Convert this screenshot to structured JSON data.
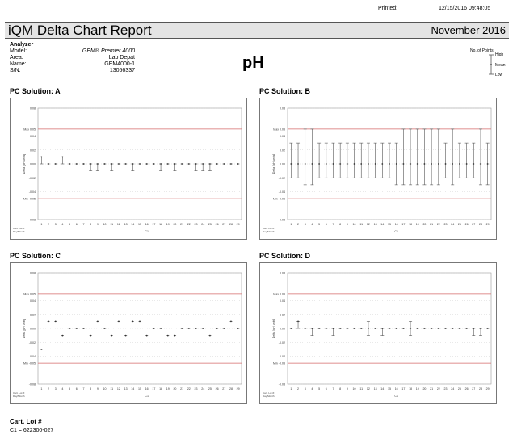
{
  "header": {
    "printed_label": "Printed:",
    "printed_value": "12/15/2016  09:48:05",
    "report_title": "iQM Delta Chart Report",
    "month": "November 2016"
  },
  "analyzer": {
    "heading": "Analyzer",
    "rows": [
      {
        "label": "Model:",
        "value": "GEM® Premier 4000"
      },
      {
        "label": "Area:",
        "value": "Lab Depat"
      },
      {
        "label": "Name:",
        "value": "GEM4000-1"
      },
      {
        "label": "S/N:",
        "value": "13056337"
      }
    ]
  },
  "parameter": "pH",
  "legend": {
    "title": "No. of Points",
    "high": "High",
    "mean": "Mean",
    "low": "Low"
  },
  "axis": {
    "ylabels": [
      "0.08",
      "Max 0.05",
      "0.04",
      "0.02",
      "0.00",
      "-0.02",
      "-0.04",
      "Min -0.05",
      "-0.08"
    ],
    "ytitle": "Delta [pH units]",
    "days": [
      "1",
      "2",
      "3",
      "4",
      "5",
      "6",
      "7",
      "8",
      "9",
      "10",
      "11",
      "12",
      "13",
      "14",
      "15",
      "16",
      "17",
      "18",
      "19",
      "20",
      "21",
      "22",
      "23",
      "24",
      "25",
      "26",
      "27",
      "28",
      "29"
    ],
    "cart_label": "Cart. Lot #:",
    "day_label": "Day/Month",
    "lot_mark": "C1"
  },
  "colors": {
    "limit": "#d46a6a",
    "grid": "#c8c8c8",
    "data": "#555555"
  },
  "chart_data": [
    {
      "type": "scatter",
      "title": "PC Solution: A",
      "ylim": [
        -0.08,
        0.08
      ],
      "limits": [
        0.05,
        -0.05
      ],
      "x": [
        1,
        2,
        3,
        4,
        5,
        6,
        7,
        8,
        9,
        10,
        11,
        12,
        13,
        14,
        15,
        16,
        17,
        18,
        19,
        20,
        21,
        22,
        23,
        24,
        25,
        26,
        27,
        28,
        29
      ],
      "mean": [
        0.01,
        0,
        0,
        0.01,
        0,
        0,
        0,
        0,
        0,
        0,
        0,
        0,
        0,
        0,
        0,
        0,
        0,
        0,
        0,
        0,
        0,
        0,
        0,
        0,
        0,
        0,
        0,
        0,
        0
      ],
      "high": [
        0.01,
        0,
        0,
        0.01,
        0,
        0,
        0,
        0,
        0,
        0,
        0,
        0,
        0,
        0,
        0,
        0,
        0,
        0,
        0,
        0,
        0,
        0,
        0,
        0,
        0,
        0,
        0,
        0,
        0
      ],
      "low": [
        0,
        0,
        0,
        0,
        0,
        0,
        0,
        -0.01,
        -0.01,
        0,
        -0.01,
        0,
        0,
        -0.01,
        0,
        0,
        0,
        -0.01,
        0,
        -0.01,
        0,
        0,
        -0.01,
        -0.01,
        -0.01,
        0,
        0,
        0,
        0
      ]
    },
    {
      "type": "scatter",
      "title": "PC Solution: B",
      "ylim": [
        -0.08,
        0.08
      ],
      "limits": [
        0.05,
        -0.05
      ],
      "x": [
        1,
        2,
        3,
        4,
        5,
        6,
        7,
        8,
        9,
        10,
        11,
        12,
        13,
        14,
        15,
        16,
        17,
        18,
        19,
        20,
        21,
        22,
        23,
        24,
        25,
        26,
        27,
        28,
        29
      ],
      "mean": [
        0,
        0,
        0,
        0,
        0,
        0,
        0,
        0,
        0,
        0,
        0,
        0,
        0,
        0,
        0,
        0,
        0,
        0,
        0,
        0,
        0,
        0,
        0,
        0,
        0,
        0,
        0,
        0,
        0
      ],
      "high": [
        0.03,
        0.03,
        0.05,
        0.05,
        0.03,
        0.03,
        0.03,
        0.03,
        0.03,
        0.03,
        0.03,
        0.03,
        0.03,
        0.03,
        0.03,
        0.03,
        0.05,
        0.05,
        0.05,
        0.05,
        0.05,
        0.05,
        0.03,
        0.05,
        0.03,
        0.03,
        0.03,
        0.05,
        0.03
      ],
      "low": [
        -0.02,
        -0.02,
        -0.03,
        -0.03,
        -0.02,
        -0.02,
        -0.02,
        -0.02,
        -0.02,
        -0.02,
        -0.02,
        -0.02,
        -0.02,
        -0.02,
        -0.02,
        -0.03,
        -0.03,
        -0.03,
        -0.03,
        -0.03,
        -0.03,
        -0.03,
        -0.02,
        -0.03,
        -0.02,
        -0.02,
        -0.02,
        -0.03,
        -0.03
      ]
    },
    {
      "type": "scatter",
      "title": "PC Solution: C",
      "ylim": [
        -0.08,
        0.08
      ],
      "limits": [
        0.05,
        -0.05
      ],
      "x": [
        1,
        2,
        3,
        4,
        5,
        6,
        7,
        8,
        9,
        10,
        11,
        12,
        13,
        14,
        15,
        16,
        17,
        18,
        19,
        20,
        21,
        22,
        23,
        24,
        25,
        26,
        27,
        28,
        29
      ],
      "mean": [
        -0.03,
        0.01,
        0.01,
        -0.01,
        0,
        0,
        0,
        -0.01,
        0.01,
        0,
        -0.01,
        0.01,
        -0.01,
        0.01,
        0.01,
        -0.01,
        0,
        0,
        -0.01,
        -0.01,
        0,
        0,
        0,
        0,
        -0.01,
        0,
        0,
        0.01,
        0
      ],
      "high": [
        -0.03,
        0.01,
        0.01,
        -0.01,
        0,
        0,
        0,
        -0.01,
        0.01,
        0,
        -0.01,
        0.01,
        -0.01,
        0.01,
        0.01,
        -0.01,
        0,
        0,
        -0.01,
        -0.01,
        0,
        0,
        0,
        0,
        -0.01,
        0,
        0,
        0.01,
        0
      ],
      "low": [
        -0.03,
        0.01,
        0.01,
        -0.01,
        0,
        0,
        0,
        -0.01,
        0.01,
        0,
        -0.01,
        0.01,
        -0.01,
        0.01,
        0.01,
        -0.01,
        0,
        0,
        -0.01,
        -0.01,
        0,
        0,
        0,
        0,
        -0.01,
        0,
        0,
        0.01,
        0
      ]
    },
    {
      "type": "scatter",
      "title": "PC Solution: D",
      "ylim": [
        -0.08,
        0.08
      ],
      "limits": [
        0.05,
        -0.05
      ],
      "x": [
        1,
        2,
        3,
        4,
        5,
        6,
        7,
        8,
        9,
        10,
        11,
        12,
        13,
        14,
        15,
        16,
        17,
        18,
        19,
        20,
        21,
        22,
        23,
        24,
        25,
        26,
        27,
        28,
        29
      ],
      "mean": [
        0,
        0.01,
        0,
        0,
        0,
        0,
        0,
        0,
        0,
        0,
        0,
        0,
        0,
        0,
        0,
        0,
        0,
        0,
        0,
        0,
        0,
        0,
        0,
        0,
        0,
        0,
        0,
        0,
        0
      ],
      "high": [
        0,
        0.01,
        0,
        0,
        0,
        0,
        0,
        0,
        0,
        0,
        0,
        0.01,
        0,
        0,
        0,
        0,
        0,
        0.01,
        0,
        0,
        0,
        0,
        0,
        0,
        0,
        0,
        0,
        0,
        0
      ],
      "low": [
        0,
        0,
        0,
        -0.01,
        0,
        0,
        -0.01,
        0,
        0,
        0,
        0,
        -0.01,
        0,
        -0.01,
        0,
        0,
        0,
        -0.01,
        0,
        0,
        0,
        0,
        0,
        0,
        0,
        0,
        -0.01,
        -0.01,
        0
      ]
    }
  ],
  "footer": {
    "cart_lot_heading": "Cart. Lot #",
    "c1": "C1 = 622300-027"
  }
}
